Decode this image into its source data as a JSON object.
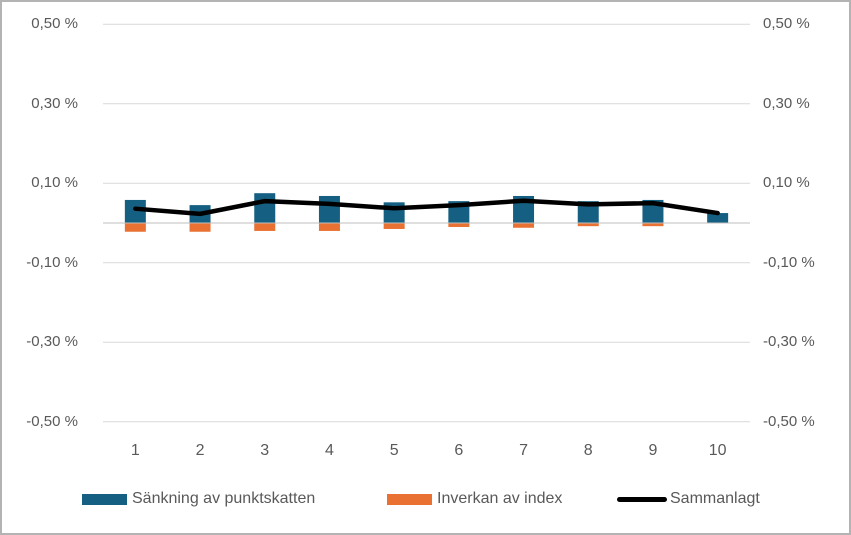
{
  "window": {
    "background_color": "#FFFFFF",
    "border_color": "#B3B3B3"
  },
  "chart_data": {
    "type": "combo",
    "subtype": "stacked-bars-with-line-overlay",
    "categories": [
      "1",
      "2",
      "3",
      "4",
      "5",
      "6",
      "7",
      "8",
      "9",
      "10"
    ],
    "series": [
      {
        "name": "Sänkning av punktskatten",
        "type": "bar",
        "color": "#156082",
        "values": [
          0.058,
          0.045,
          0.075,
          0.068,
          0.052,
          0.055,
          0.068,
          0.055,
          0.058,
          0.025
        ]
      },
      {
        "name": "Inverkan av index",
        "type": "bar",
        "color": "#E97132",
        "values": [
          -0.022,
          -0.022,
          -0.02,
          -0.02,
          -0.015,
          -0.01,
          -0.012,
          -0.008,
          -0.008,
          0.0
        ]
      },
      {
        "name": "Sammanlagt",
        "type": "line",
        "color": "#000000",
        "values": [
          0.036,
          0.023,
          0.055,
          0.048,
          0.037,
          0.045,
          0.056,
          0.047,
          0.05,
          0.025
        ]
      }
    ],
    "y_axis": {
      "unit": "%",
      "decimal_separator": ",",
      "tick_labels": [
        "0,50 %",
        "0,30 %",
        "0,10 %",
        "-0,10 %",
        "-0,30 %",
        "-0,50 %"
      ],
      "tick_values": [
        0.5,
        0.3,
        0.1,
        -0.1,
        -0.3,
        -0.5
      ],
      "range": [
        -0.5,
        0.5
      ],
      "shown_on": "both-sides",
      "grid": true,
      "gridline_color": "#D9D9D9",
      "zero_line_color": "#BFBFBF",
      "text_color": "#595959"
    },
    "x_axis": {
      "text_color": "#595959"
    },
    "legend": {
      "position": "bottom",
      "entries": [
        "Sänkning av punktskatten",
        "Inverkan av index",
        "Sammanlagt"
      ]
    },
    "title": ""
  }
}
